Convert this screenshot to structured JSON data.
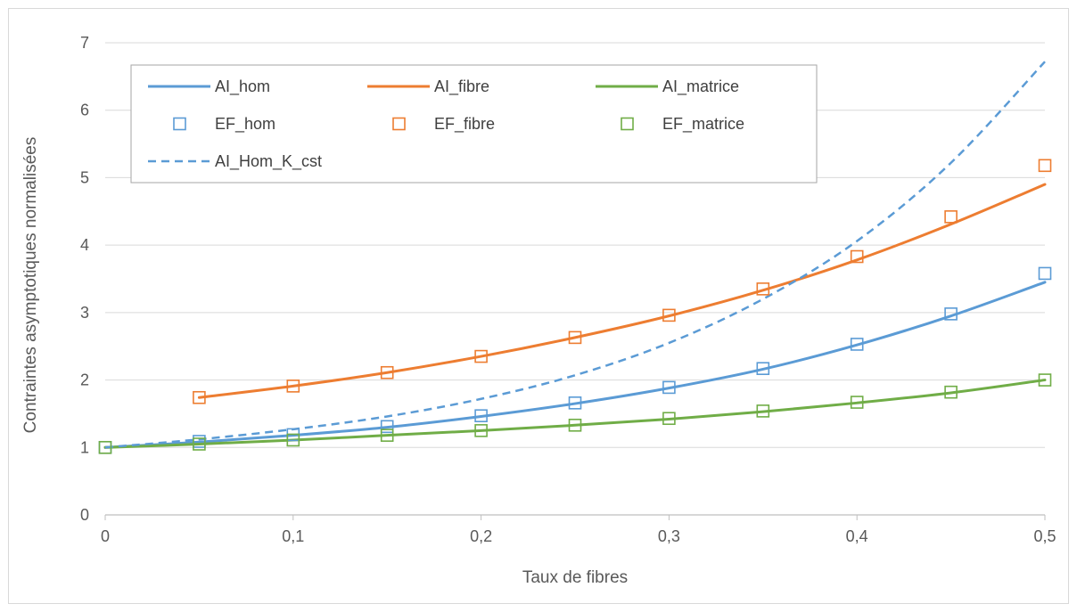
{
  "chart_data": {
    "type": "line",
    "xlabel": "Taux de fibres",
    "ylabel": "Contraintes asymptotiques normalisées",
    "xlim": [
      0,
      0.5
    ],
    "ylim": [
      0,
      7
    ],
    "x_ticks": [
      "0",
      "0,1",
      "0,2",
      "0,3",
      "0,4",
      "0,5"
    ],
    "x_tick_values": [
      0,
      0.1,
      0.2,
      0.3,
      0.4,
      0.5
    ],
    "y_ticks": [
      "0",
      "1",
      "2",
      "3",
      "4",
      "5",
      "6",
      "7"
    ],
    "y_tick_values": [
      0,
      1,
      2,
      3,
      4,
      5,
      6,
      7
    ],
    "grid": "horizontal",
    "legend_position": "top-left",
    "series": [
      {
        "name": "AI_hom",
        "kind": "line",
        "style": "solid",
        "color": "#5b9bd5",
        "x": [
          0,
          0.05,
          0.1,
          0.15,
          0.2,
          0.25,
          0.3,
          0.35,
          0.4,
          0.45,
          0.5
        ],
        "y": [
          1.0,
          1.08,
          1.18,
          1.3,
          1.46,
          1.65,
          1.88,
          2.16,
          2.52,
          2.95,
          3.45
        ]
      },
      {
        "name": "AI_fibre",
        "kind": "line",
        "style": "solid",
        "color": "#ed7d31",
        "x": [
          0.05,
          0.1,
          0.15,
          0.2,
          0.25,
          0.3,
          0.35,
          0.4,
          0.45,
          0.5
        ],
        "y": [
          1.74,
          1.91,
          2.11,
          2.35,
          2.63,
          2.95,
          3.33,
          3.78,
          4.31,
          4.9
        ]
      },
      {
        "name": "AI_matrice",
        "kind": "line",
        "style": "solid",
        "color": "#70ad47",
        "x": [
          0,
          0.05,
          0.1,
          0.15,
          0.2,
          0.25,
          0.3,
          0.35,
          0.4,
          0.45,
          0.5
        ],
        "y": [
          1.0,
          1.05,
          1.11,
          1.18,
          1.25,
          1.33,
          1.42,
          1.53,
          1.66,
          1.81,
          2.0
        ]
      },
      {
        "name": "EF_hom",
        "kind": "marker",
        "color": "#5b9bd5",
        "x": [
          0,
          0.05,
          0.1,
          0.15,
          0.2,
          0.25,
          0.3,
          0.35,
          0.4,
          0.45,
          0.5
        ],
        "y": [
          1.0,
          1.09,
          1.19,
          1.31,
          1.47,
          1.66,
          1.89,
          2.17,
          2.53,
          2.98,
          3.58
        ]
      },
      {
        "name": "EF_fibre",
        "kind": "marker",
        "color": "#ed7d31",
        "x": [
          0.05,
          0.1,
          0.15,
          0.2,
          0.25,
          0.3,
          0.35,
          0.4,
          0.45,
          0.5
        ],
        "y": [
          1.74,
          1.91,
          2.11,
          2.35,
          2.63,
          2.96,
          3.35,
          3.83,
          4.42,
          5.18
        ]
      },
      {
        "name": "EF_matrice",
        "kind": "marker",
        "color": "#70ad47",
        "x": [
          0,
          0.05,
          0.1,
          0.15,
          0.2,
          0.25,
          0.3,
          0.35,
          0.4,
          0.45,
          0.5
        ],
        "y": [
          1.0,
          1.05,
          1.11,
          1.18,
          1.25,
          1.33,
          1.43,
          1.54,
          1.67,
          1.82,
          2.0
        ]
      },
      {
        "name": "AI_Hom_K_cst",
        "kind": "line",
        "style": "dashed",
        "color": "#5b9bd5",
        "x": [
          0,
          0.05,
          0.1,
          0.15,
          0.2,
          0.25,
          0.3,
          0.35,
          0.4,
          0.45,
          0.5
        ],
        "y": [
          1.0,
          1.12,
          1.27,
          1.46,
          1.72,
          2.07,
          2.55,
          3.2,
          4.06,
          5.22,
          6.72
        ]
      }
    ]
  }
}
